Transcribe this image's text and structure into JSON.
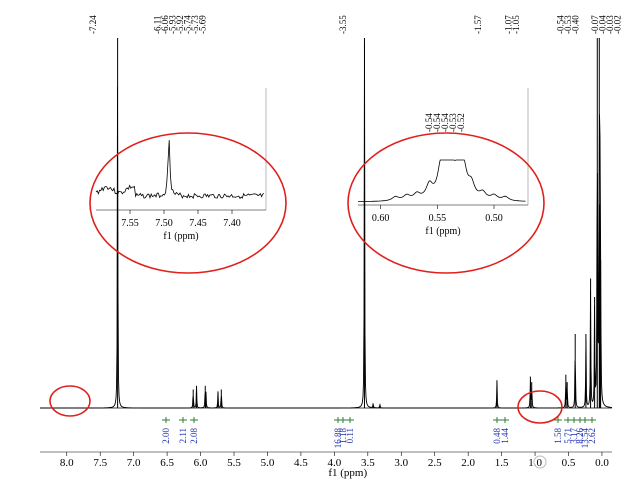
{
  "chart_data": {
    "type": "line",
    "xlabel": "f1 (ppm)",
    "x_reversed": true,
    "xlim": [
      8.4,
      -0.15
    ],
    "x_ticks": [
      "8.0",
      "7.5",
      "7.0",
      "6.5",
      "6.0",
      "5.5",
      "5.0",
      "4.5",
      "4.0",
      "3.5",
      "3.0",
      "2.5",
      "2.0",
      "1.5",
      "1.0",
      "0.5",
      "0.0"
    ],
    "series": [
      {
        "peaks": [
          {
            "ppm": 7.24,
            "height": 1.0
          },
          {
            "ppm": 6.11,
            "height": 0.05
          },
          {
            "ppm": 6.06,
            "height": 0.06
          },
          {
            "ppm": 5.93,
            "height": 0.06
          },
          {
            "ppm": 5.92,
            "height": 0.04
          },
          {
            "ppm": 5.74,
            "height": 0.045
          },
          {
            "ppm": 5.69,
            "height": 0.05
          },
          {
            "ppm": 3.55,
            "height": 1.0
          },
          {
            "ppm": 3.42,
            "height": 0.012
          },
          {
            "ppm": 3.32,
            "height": 0.01
          },
          {
            "ppm": 1.57,
            "height": 0.075
          },
          {
            "ppm": 1.07,
            "height": 0.085
          },
          {
            "ppm": 1.05,
            "height": 0.07
          },
          {
            "ppm": 0.54,
            "height": 0.09
          },
          {
            "ppm": 0.52,
            "height": 0.07
          },
          {
            "ppm": 0.4,
            "height": 0.2
          },
          {
            "ppm": 0.24,
            "height": 0.2
          },
          {
            "ppm": 0.17,
            "height": 0.35
          },
          {
            "ppm": 0.11,
            "height": 0.3
          },
          {
            "ppm": 0.07,
            "height": 1.0
          },
          {
            "ppm": 0.04,
            "height": 1.0
          },
          {
            "ppm": 0.03,
            "height": 0.55
          },
          {
            "ppm": 0.02,
            "height": 0.4
          }
        ]
      }
    ],
    "peak_labels": {
      "groups": [
        {
          "labels": [
            "7.24"
          ]
        },
        {
          "labels": [
            "6.11",
            "6.06",
            "5.93",
            "5.92",
            "5.74",
            "5.73",
            "5.69"
          ]
        },
        {
          "labels": [
            "3.55"
          ]
        },
        {
          "labels": [
            "1.57"
          ]
        },
        {
          "labels": [
            "1.07",
            "1.05"
          ]
        },
        {
          "labels": [
            "0.54",
            "0.53",
            "0.40"
          ]
        },
        {
          "labels": [
            "0.07",
            "0.04",
            "0.03",
            "0.02"
          ]
        }
      ]
    },
    "integrals": [
      {
        "ppm": 6.08,
        "value": "2.00"
      },
      {
        "ppm": 5.93,
        "value": "2.11"
      },
      {
        "ppm": 5.72,
        "value": "2.08"
      },
      {
        "ppm": 3.57,
        "value": "16.88"
      },
      {
        "ppm": 3.5,
        "value": "1.18"
      },
      {
        "ppm": 3.38,
        "value": "0.11"
      },
      {
        "ppm": 1.57,
        "value": "0.48"
      },
      {
        "ppm": 1.06,
        "value": "1.44"
      },
      {
        "ppm": 0.5,
        "value": "1.58"
      },
      {
        "ppm": 0.25,
        "value": "5.71"
      },
      {
        "ppm": 0.17,
        "value": "3.17"
      },
      {
        "ppm": 0.09,
        "value": "8.26"
      },
      {
        "ppm": 0.07,
        "value": "13.54"
      },
      {
        "ppm": 0.04,
        "value": "2.62"
      }
    ],
    "insets": [
      {
        "xlabel": "f1 (ppm)",
        "xlim": [
          7.6,
          7.35
        ],
        "x_ticks": [
          "7.55",
          "7.50",
          "7.45",
          "7.40"
        ],
        "peak_labels": []
      },
      {
        "xlabel": "f1 (ppm)",
        "xlim": [
          0.62,
          0.47
        ],
        "x_ticks": [
          "0.60",
          "0.55",
          "0.50"
        ],
        "peak_labels": [
          "0.54",
          "0.54",
          "0.54",
          "0.53",
          "0.52"
        ]
      }
    ],
    "annotation_color": "#e0201c",
    "integral_color": "#1c2fb0",
    "integral_bracket_color": "#2e7d32"
  }
}
